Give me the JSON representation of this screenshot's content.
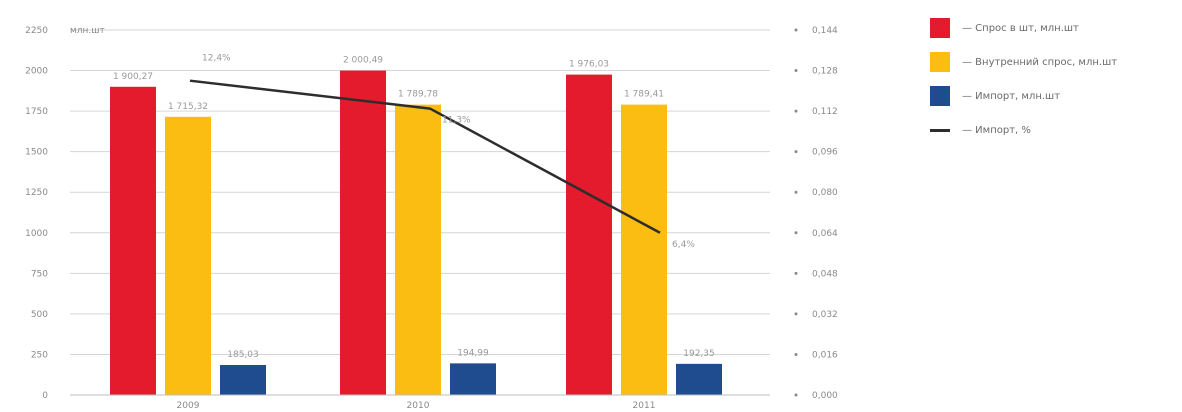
{
  "chart_data": {
    "type": "bar",
    "y_unit_label": "млн.шт",
    "categories": [
      "2009",
      "2010",
      "2011"
    ],
    "ylim": [
      0,
      2000
    ],
    "yticks": [
      "0",
      "250",
      "500",
      "750",
      "1000",
      "1250",
      "1500",
      "1750",
      "2000",
      "2250"
    ],
    "y2lim": [
      0,
      0.144
    ],
    "y2ticks": [
      "0,000",
      "0,016",
      "0,032",
      "0,048",
      "0,064",
      "0,080",
      "0,096",
      "0,112",
      "0,128",
      "0,144"
    ],
    "grid": true,
    "legend_position": "right",
    "series": [
      {
        "name": "Спрос в шт, млн.шт",
        "color": "#e31b2d",
        "axis": "left",
        "values": [
          1900,
          2000,
          1975
        ],
        "labels": [
          "1 900,27",
          "2 000,49",
          "1 976,03"
        ]
      },
      {
        "name": "Внутренний спрос, млн.шт",
        "color": "#fbbd12",
        "axis": "left",
        "values": [
          1715,
          1790,
          1790
        ],
        "labels": [
          "1 715,32",
          "1 789,78",
          "1 789,41"
        ]
      },
      {
        "name": "Импорт, млн.шт",
        "color": "#1f4b8f",
        "axis": "left",
        "values": [
          185,
          195,
          192
        ],
        "labels": [
          "185,03",
          "194,99",
          "192,35"
        ]
      },
      {
        "name": "Импорт, %",
        "type": "line",
        "color": "#2d2d2d",
        "axis": "right",
        "values": [
          0.124,
          0.113,
          0.064
        ],
        "labels": [
          "12,4%",
          "11,3%",
          "6,4%"
        ]
      }
    ]
  }
}
